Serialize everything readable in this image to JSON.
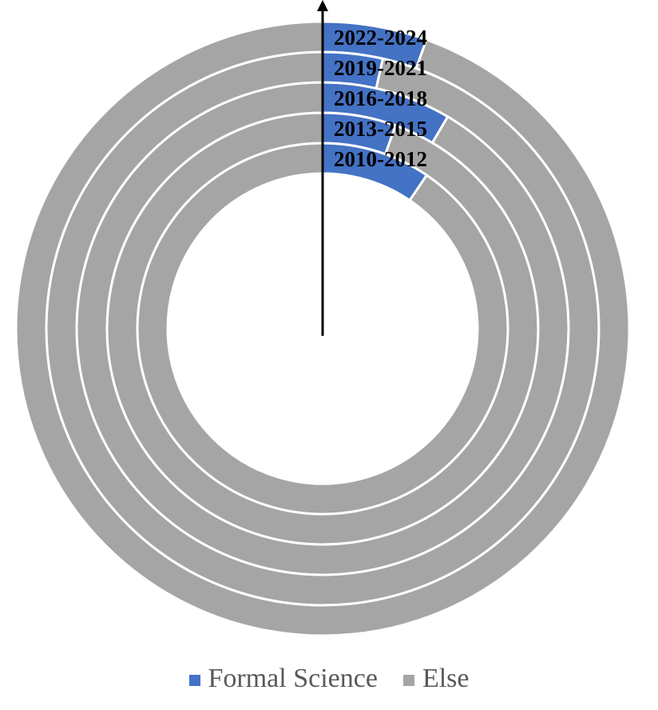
{
  "chart_data": {
    "type": "donut",
    "title": "",
    "rings": [
      "2010-2012",
      "2013-2015",
      "2016-2018",
      "2019-2021",
      "2022-2024"
    ],
    "series": [
      {
        "name": "Formal Science",
        "values": [
          0.095,
          0.055,
          0.085,
          0.035,
          0.055
        ]
      },
      {
        "name": "Else",
        "values": [
          0.905,
          0.945,
          0.915,
          0.965,
          0.945
        ]
      }
    ],
    "colors": {
      "Formal Science": "#4472C4",
      "Else": "#A5A5A5"
    },
    "legend_position": "bottom",
    "start_angle_deg": 0,
    "direction": "clockwise"
  },
  "legend": {
    "items": [
      {
        "label": "Formal Science",
        "color": "#4472C4"
      },
      {
        "label": "Else",
        "color": "#A5A5A5"
      }
    ]
  }
}
